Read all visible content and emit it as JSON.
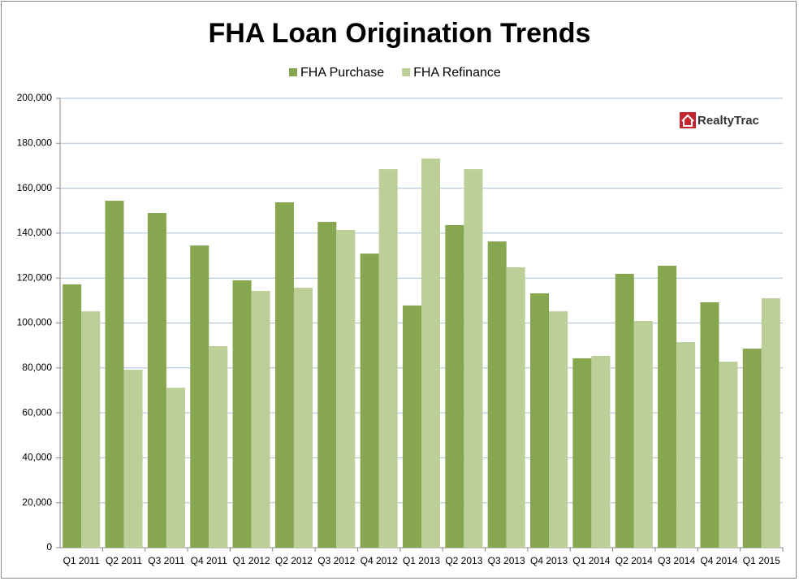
{
  "chart_data": {
    "type": "bar",
    "title": "FHA Loan Origination Trends",
    "logo": "RealtyTrac",
    "categories": [
      "Q1 2011",
      "Q2 2011",
      "Q3 2011",
      "Q4 2011",
      "Q1 2012",
      "Q2 2012",
      "Q3 2012",
      "Q4 2012",
      "Q1 2013",
      "Q2 2013",
      "Q3 2013",
      "Q4 2013",
      "Q1 2014",
      "Q2 2014",
      "Q3 2014",
      "Q4 2014",
      "Q1 2015"
    ],
    "series": [
      {
        "name": "FHA Purchase",
        "color": "#86a64f",
        "values": [
          117200,
          154400,
          149000,
          134500,
          119000,
          153700,
          145000,
          130900,
          107800,
          143600,
          136300,
          113200,
          84300,
          121900,
          125500,
          109200,
          88600
        ]
      },
      {
        "name": "FHA Refinance",
        "color": "#bccf98",
        "values": [
          105200,
          79200,
          71200,
          89700,
          114300,
          115700,
          141400,
          168500,
          173200,
          168500,
          124800,
          105200,
          85400,
          100900,
          91500,
          82800,
          111000
        ]
      }
    ],
    "ylim": [
      0,
      200000
    ],
    "yticks": [
      0,
      {
        "value": 20000,
        "label": "20,000"
      },
      {
        "value": 40000,
        "label": "40,000"
      },
      {
        "value": 60000,
        "label": "60,000"
      },
      {
        "value": 80000,
        "label": "80,000"
      },
      {
        "value": 100000,
        "label": "100,000"
      },
      {
        "value": 120000,
        "label": "120,000"
      },
      {
        "value": 140000,
        "label": "140,000"
      },
      {
        "value": 160000,
        "label": "160,000"
      },
      {
        "value": 180000,
        "label": "180,000"
      },
      {
        "value": 200000,
        "label": "200,000"
      }
    ],
    "grid": true,
    "legend": "top"
  }
}
